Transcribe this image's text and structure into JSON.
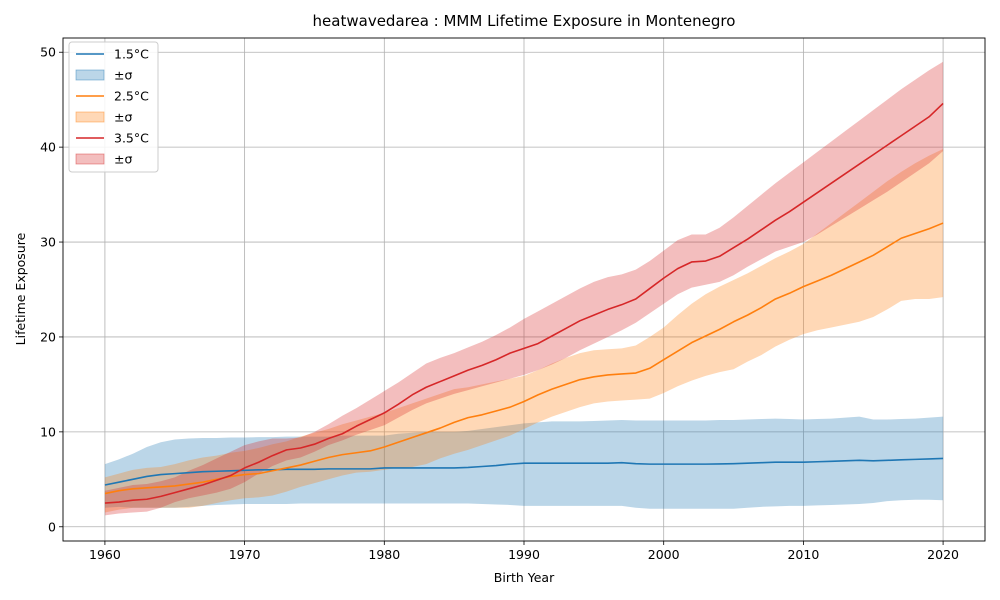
{
  "chart_data": {
    "type": "line",
    "title": "heatwavedarea : MMM Lifetime Exposure in Montenegro",
    "xlabel": "Birth Year",
    "ylabel": "Lifetime Exposure",
    "xlim": [
      1957,
      2023
    ],
    "ylim": [
      -1.5,
      51.5
    ],
    "xticks": [
      1960,
      1970,
      1980,
      1990,
      2000,
      2010,
      2020
    ],
    "yticks": [
      0,
      10,
      20,
      30,
      40,
      50
    ],
    "grid": true,
    "legend_position": "top-left",
    "x": [
      1960,
      1961,
      1962,
      1963,
      1964,
      1965,
      1966,
      1967,
      1968,
      1969,
      1970,
      1971,
      1972,
      1973,
      1974,
      1975,
      1976,
      1977,
      1978,
      1979,
      1980,
      1981,
      1982,
      1983,
      1984,
      1985,
      1986,
      1987,
      1988,
      1989,
      1990,
      1991,
      1992,
      1993,
      1994,
      1995,
      1996,
      1997,
      1998,
      1999,
      2000,
      2001,
      2002,
      2003,
      2004,
      2005,
      2006,
      2007,
      2008,
      2009,
      2010,
      2011,
      2012,
      2013,
      2014,
      2015,
      2016,
      2017,
      2018,
      2019,
      2020
    ],
    "series": [
      {
        "name": "1.5°C",
        "band_name": "±σ",
        "color": "#1f77b4",
        "mean": [
          4.4,
          4.7,
          5.0,
          5.3,
          5.5,
          5.6,
          5.7,
          5.8,
          5.85,
          5.9,
          5.95,
          6.0,
          6.0,
          6.05,
          6.05,
          6.05,
          6.1,
          6.1,
          6.1,
          6.1,
          6.2,
          6.2,
          6.2,
          6.2,
          6.2,
          6.2,
          6.25,
          6.35,
          6.45,
          6.6,
          6.7,
          6.7,
          6.7,
          6.7,
          6.7,
          6.7,
          6.7,
          6.75,
          6.65,
          6.6,
          6.6,
          6.6,
          6.6,
          6.6,
          6.62,
          6.65,
          6.7,
          6.75,
          6.8,
          6.8,
          6.8,
          6.85,
          6.9,
          6.95,
          7.0,
          6.95,
          7.0,
          7.05,
          7.1,
          7.15,
          7.2
        ],
        "upper": [
          6.6,
          7.1,
          7.7,
          8.4,
          8.9,
          9.2,
          9.3,
          9.35,
          9.35,
          9.4,
          9.4,
          9.45,
          9.45,
          9.5,
          9.5,
          9.5,
          9.5,
          9.6,
          9.6,
          9.6,
          9.6,
          9.8,
          9.9,
          10.0,
          10.0,
          10.0,
          10.1,
          10.3,
          10.5,
          10.7,
          10.9,
          11.0,
          11.1,
          11.1,
          11.1,
          11.15,
          11.2,
          11.25,
          11.2,
          11.2,
          11.2,
          11.2,
          11.2,
          11.2,
          11.25,
          11.25,
          11.3,
          11.35,
          11.4,
          11.35,
          11.3,
          11.35,
          11.4,
          11.5,
          11.6,
          11.3,
          11.3,
          11.35,
          11.4,
          11.5,
          11.6
        ],
        "lower": [
          2.0,
          2.1,
          2.0,
          2.0,
          2.0,
          2.0,
          2.1,
          2.2,
          2.3,
          2.35,
          2.4,
          2.4,
          2.4,
          2.4,
          2.45,
          2.45,
          2.45,
          2.45,
          2.45,
          2.45,
          2.45,
          2.45,
          2.45,
          2.45,
          2.45,
          2.45,
          2.45,
          2.4,
          2.35,
          2.3,
          2.2,
          2.2,
          2.2,
          2.2,
          2.2,
          2.2,
          2.2,
          2.2,
          2.0,
          1.9,
          1.9,
          1.9,
          1.9,
          1.9,
          1.9,
          1.9,
          2.0,
          2.1,
          2.15,
          2.2,
          2.2,
          2.25,
          2.3,
          2.35,
          2.4,
          2.5,
          2.7,
          2.8,
          2.85,
          2.85,
          2.8
        ]
      },
      {
        "name": "2.5°C",
        "band_name": "±σ",
        "color": "#ff7f0e",
        "mean": [
          3.5,
          3.8,
          4.0,
          4.1,
          4.2,
          4.3,
          4.5,
          4.7,
          5.0,
          5.3,
          5.5,
          5.6,
          5.9,
          6.2,
          6.5,
          6.9,
          7.3,
          7.6,
          7.8,
          8.0,
          8.4,
          8.9,
          9.4,
          9.9,
          10.4,
          11.0,
          11.5,
          11.8,
          12.2,
          12.6,
          13.2,
          13.9,
          14.5,
          15.0,
          15.5,
          15.8,
          16.0,
          16.1,
          16.2,
          16.7,
          17.6,
          18.5,
          19.4,
          20.1,
          20.8,
          21.6,
          22.3,
          23.1,
          24.0,
          24.6,
          25.3,
          25.9,
          26.5,
          27.2,
          27.9,
          28.6,
          29.5,
          30.4,
          30.9,
          31.4,
          32.0
        ],
        "upper": [
          5.2,
          5.6,
          6.0,
          6.2,
          6.3,
          6.6,
          7.0,
          7.3,
          7.5,
          7.8,
          8.0,
          8.3,
          8.7,
          9.0,
          9.5,
          9.9,
          10.3,
          10.8,
          11.2,
          11.6,
          12.0,
          12.5,
          13.0,
          13.5,
          14.0,
          14.5,
          14.7,
          15.0,
          15.3,
          15.6,
          15.9,
          16.5,
          17.2,
          17.8,
          18.3,
          18.6,
          18.7,
          18.8,
          19.1,
          20.0,
          21.0,
          22.3,
          23.5,
          24.5,
          25.3,
          26.0,
          26.7,
          27.5,
          28.3,
          29.0,
          29.8,
          30.9,
          32.0,
          33.1,
          34.2,
          35.3,
          36.4,
          37.4,
          38.3,
          39.1,
          39.8
        ],
        "lower": [
          1.5,
          1.8,
          2.0,
          2.0,
          2.0,
          2.0,
          2.0,
          2.2,
          2.5,
          2.8,
          3.0,
          3.1,
          3.3,
          3.7,
          4.2,
          4.6,
          5.0,
          5.4,
          5.7,
          5.8,
          6.0,
          6.2,
          6.3,
          6.6,
          7.2,
          7.7,
          8.1,
          8.6,
          9.1,
          9.6,
          10.3,
          11.0,
          11.6,
          12.1,
          12.6,
          13.0,
          13.2,
          13.3,
          13.4,
          13.5,
          14.1,
          14.8,
          15.4,
          15.9,
          16.3,
          16.6,
          17.4,
          18.1,
          19.0,
          19.7,
          20.3,
          20.7,
          21.0,
          21.3,
          21.6,
          22.1,
          22.9,
          23.8,
          24.0,
          24.0,
          24.2
        ]
      },
      {
        "name": "3.5°C",
        "band_name": "±σ",
        "color": "#d62728",
        "mean": [
          2.5,
          2.6,
          2.8,
          2.9,
          3.2,
          3.6,
          4.0,
          4.4,
          4.9,
          5.4,
          6.2,
          6.8,
          7.5,
          8.1,
          8.3,
          8.7,
          9.3,
          9.8,
          10.6,
          11.3,
          12.0,
          12.9,
          13.9,
          14.7,
          15.3,
          15.9,
          16.5,
          17.0,
          17.6,
          18.3,
          18.8,
          19.3,
          20.1,
          20.9,
          21.7,
          22.3,
          22.9,
          23.4,
          24.0,
          25.1,
          26.2,
          27.2,
          27.9,
          28.0,
          28.5,
          29.4,
          30.3,
          31.3,
          32.3,
          33.2,
          34.2,
          35.2,
          36.2,
          37.2,
          38.2,
          39.2,
          40.2,
          41.2,
          42.2,
          43.2,
          44.6
        ],
        "upper": [
          3.8,
          4.1,
          4.4,
          4.5,
          4.8,
          5.2,
          5.9,
          6.5,
          7.2,
          7.9,
          8.6,
          9.0,
          9.3,
          9.3,
          9.4,
          10.0,
          10.8,
          11.7,
          12.5,
          13.4,
          14.3,
          15.2,
          16.2,
          17.2,
          17.8,
          18.3,
          18.9,
          19.5,
          20.2,
          21.0,
          21.9,
          22.7,
          23.5,
          24.3,
          25.1,
          25.8,
          26.3,
          26.6,
          27.1,
          28.0,
          29.1,
          30.2,
          30.8,
          30.8,
          31.5,
          32.6,
          33.8,
          35.0,
          36.2,
          37.3,
          38.4,
          39.5,
          40.6,
          41.7,
          42.8,
          43.9,
          45.0,
          46.1,
          47.1,
          48.1,
          49.0
        ],
        "lower": [
          1.2,
          1.4,
          1.5,
          1.6,
          2.0,
          2.6,
          3.0,
          3.3,
          3.6,
          4.0,
          4.7,
          5.6,
          6.4,
          7.0,
          7.3,
          7.9,
          8.6,
          9.1,
          9.7,
          10.2,
          10.7,
          11.5,
          12.3,
          13.0,
          13.5,
          14.0,
          14.4,
          14.8,
          15.2,
          15.6,
          16.0,
          16.5,
          17.1,
          17.8,
          18.6,
          19.3,
          20.0,
          20.7,
          21.5,
          22.5,
          23.5,
          24.5,
          25.2,
          25.5,
          25.8,
          26.5,
          27.4,
          28.2,
          29.0,
          29.5,
          30.0,
          30.8,
          31.7,
          32.6,
          33.5,
          34.4,
          35.3,
          36.3,
          37.3,
          38.3,
          39.6
        ]
      }
    ]
  }
}
